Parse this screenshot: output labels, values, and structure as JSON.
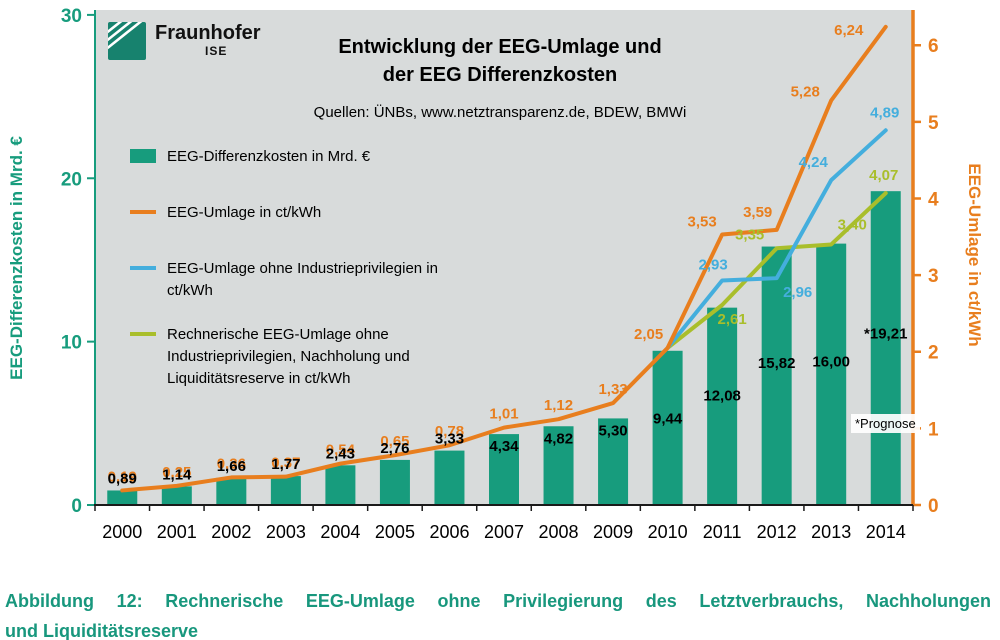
{
  "logo": {
    "brand": "Fraunhofer",
    "sub": "ISE"
  },
  "header": {
    "title_line1": "Entwicklung der EEG-Umlage und",
    "title_line2": "der EEG Differenzkosten",
    "sources": "Quellen: ÜNBs, www.netztransparenz.de, BDEW, BMWi"
  },
  "legend": {
    "items": [
      {
        "label": "EEG-Differenzkosten in Mrd. €",
        "swatch": "bar",
        "color": "#179C7D"
      },
      {
        "label": "EEG-Umlage in ct/kWh",
        "swatch": "line",
        "color": "#E87E1E"
      },
      {
        "label": "EEG-Umlage ohne Industrieprivilegien in ct/kWh",
        "swatch": "line",
        "color": "#44AEDD"
      },
      {
        "label": "Rechnerische EEG-Umlage ohne Industrieprivilegien, Nachholung und Liquiditätsreserve in ct/kWh",
        "swatch": "line",
        "color": "#A9BE2B"
      }
    ]
  },
  "axes": {
    "left_label": "EEG-Differenzkosten in Mrd. €",
    "right_label": "EEG-Umlage in ct/kWh"
  },
  "footnote": "*Prognose",
  "caption": {
    "line1": "Abbildung 12: Rechnerische EEG-Umlage ohne Privilegierung des Letztverbrauchs, Nachholungen",
    "line2": "und Liquiditätsreserve"
  },
  "chart_data": {
    "type": "bar",
    "title": "Entwicklung der EEG-Umlage und der EEG Differenzkosten",
    "subtitle": "Quellen: ÜNBs, www.netztransparenz.de, BDEW, BMWi",
    "categories": [
      2000,
      2001,
      2002,
      2003,
      2004,
      2005,
      2006,
      2007,
      2008,
      2009,
      2010,
      2011,
      2012,
      2013,
      2014
    ],
    "left_axis": {
      "label": "EEG-Differenzkosten in Mrd. €",
      "ticks": [
        0,
        10,
        20,
        30
      ],
      "range": [
        0,
        30.3
      ],
      "color": "#179C7D"
    },
    "right_axis": {
      "label": "EEG-Umlage in ct/kWh",
      "ticks": [
        0,
        1,
        2,
        3,
        4,
        5,
        6
      ],
      "range": [
        0,
        6.46
      ],
      "color": "#E87E1E"
    },
    "grid": false,
    "legend_position": "left-inside",
    "series": [
      {
        "name": "EEG-Differenzkosten in Mrd. €",
        "type": "bar",
        "axis": "left",
        "color": "#179C7D",
        "values": [
          0.89,
          1.14,
          1.66,
          1.77,
          2.43,
          2.76,
          3.33,
          4.34,
          4.82,
          5.3,
          9.44,
          12.08,
          15.82,
          16.0,
          19.21
        ],
        "labels": [
          "0,89",
          "1,14",
          "1,66",
          "1,77",
          "2,43",
          "2,76",
          "3,33",
          "4,34",
          "4,82",
          "5,30",
          "9,44",
          "12,08",
          "15,82",
          "16,00",
          "*19,21"
        ]
      },
      {
        "name": "EEG-Umlage in ct/kWh",
        "type": "line",
        "axis": "right",
        "color": "#E87E1E",
        "values": [
          0.19,
          0.25,
          0.36,
          0.37,
          0.54,
          0.65,
          0.78,
          1.01,
          1.12,
          1.33,
          2.05,
          3.53,
          3.59,
          5.28,
          6.24
        ],
        "labels": [
          "0,19",
          "0,25",
          "0,36",
          "0,37",
          "0,54",
          "0,65",
          "0,78",
          "1,01",
          "1,12",
          "1,33",
          "2,05",
          "3,53",
          "3,59",
          "5,28",
          "6,24"
        ]
      },
      {
        "name": "EEG-Umlage ohne Industrieprivilegien in ct/kWh",
        "type": "line",
        "axis": "right",
        "color": "#44AEDD",
        "values": [
          null,
          null,
          null,
          null,
          null,
          null,
          null,
          null,
          null,
          null,
          2.05,
          2.93,
          2.96,
          4.24,
          4.89
        ],
        "labels": [
          null,
          null,
          null,
          null,
          null,
          null,
          null,
          null,
          null,
          null,
          null,
          "2,93",
          "2,96",
          "4,24",
          "4,89"
        ]
      },
      {
        "name": "Rechnerische EEG-Umlage ohne Industrieprivilegien, Nachholung und Liquiditätsreserve in ct/kWh",
        "type": "line",
        "axis": "right",
        "color": "#A9BE2B",
        "values": [
          null,
          null,
          null,
          null,
          null,
          null,
          null,
          null,
          null,
          null,
          2.05,
          2.61,
          3.35,
          3.4,
          4.07
        ],
        "labels": [
          null,
          null,
          null,
          null,
          null,
          null,
          null,
          null,
          null,
          null,
          null,
          "2,61",
          "3,35",
          "3,40",
          "4,07"
        ]
      }
    ],
    "footnote": "*Prognose"
  }
}
